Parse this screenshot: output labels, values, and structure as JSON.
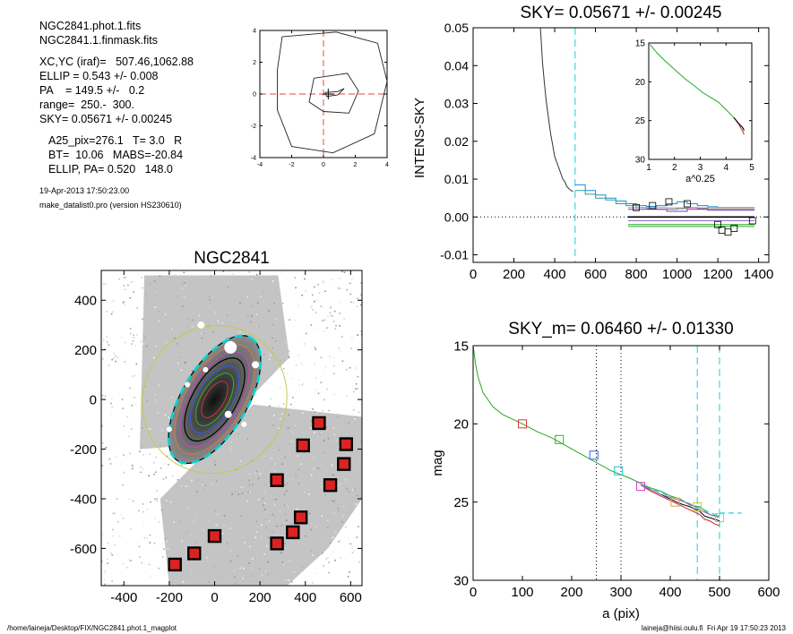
{
  "info": {
    "lines": [
      "NGC2841.phot.1.fits",
      "NGC2841.1.finmask.fits",
      "XC,YC (iraf)=   507.46,1062.88",
      "ELLIP = 0.543 +/- 0.008",
      "PA    = 149.5 +/-   0.2",
      "range=  250.-  300.",
      "SKY= 0.05671 +/- 0.00245",
      "A25_pix=276.1   T= 3.0   R",
      "BT=  10.06   MABS=-20.84",
      "ELLIP, PA= 0.520   148.0"
    ],
    "small_lines": [
      "19-Apr-2013 17:50:23.00",
      "make_datalist0.pro (version HS230610)"
    ]
  },
  "footer": {
    "left": "/home/laineja/Desktop/FIX/NGC2841.phot.1_magplot",
    "right": "laineja@hiisi.oulu.fi  Fri Apr 19 17:50:23 2013"
  },
  "chart_data": [
    {
      "type": "contour",
      "id": "center-contour",
      "xlim": [
        -4,
        4
      ],
      "ylim": [
        -4,
        4
      ],
      "xticks": [
        -4,
        -2,
        0,
        2,
        4
      ],
      "yticks": [
        -4,
        -2,
        0,
        2,
        4
      ],
      "contours": [
        [
          [
            -2.6,
            3.6
          ],
          [
            0.8,
            3.9
          ],
          [
            3.4,
            3.2
          ],
          [
            4.0,
            0.8
          ],
          [
            3.2,
            -2.5
          ],
          [
            0.6,
            -3.7
          ],
          [
            -2.0,
            -3.3
          ],
          [
            -2.9,
            -1.0
          ],
          [
            -2.9,
            1.5
          ],
          [
            -2.6,
            3.6
          ]
        ],
        [
          [
            -0.6,
            1.0
          ],
          [
            1.5,
            1.3
          ],
          [
            2.2,
            0.2
          ],
          [
            1.6,
            -1.2
          ],
          [
            0.0,
            -1.1
          ],
          [
            -0.9,
            -0.5
          ],
          [
            -0.6,
            1.0
          ]
        ],
        [
          [
            0.1,
            0.1
          ],
          [
            0.9,
            0.15
          ],
          [
            1.3,
            0.35
          ],
          [
            0.9,
            -0.05
          ],
          [
            0.2,
            -0.15
          ],
          [
            0.1,
            0.1
          ]
        ]
      ],
      "cross": [
        0,
        0
      ]
    },
    {
      "type": "line",
      "id": "sky-profile",
      "title": "SKY= 0.05671 +/- 0.00245",
      "ylabel": "INTENS-SKY",
      "xlim": [
        0,
        1450
      ],
      "ylim": [
        -0.012,
        0.05
      ],
      "xticks": [
        0,
        200,
        400,
        600,
        800,
        1000,
        1200,
        1400
      ],
      "yticks": [
        -0.01,
        0.0,
        0.01,
        0.02,
        0.03,
        0.04,
        0.05
      ],
      "ytick_labels": [
        "-0.01",
        "0.00",
        "0.01",
        "0.02",
        "0.03",
        "0.04",
        "0.05"
      ],
      "vline": 500,
      "inner_profile": {
        "x": [
          330,
          340,
          350,
          360,
          370,
          380,
          390,
          400,
          410,
          420,
          430,
          440,
          450,
          460,
          470,
          480,
          490
        ],
        "y": [
          0.05,
          0.041,
          0.035,
          0.03,
          0.026,
          0.022,
          0.019,
          0.016,
          0.0145,
          0.013,
          0.0115,
          0.01,
          0.0093,
          0.008,
          0.0075,
          0.007,
          0.0068
        ]
      },
      "steps": [
        {
          "color": "#1a8fd6",
          "x": [
            500,
            550,
            600,
            650,
            700,
            750,
            800,
            850,
            900,
            950,
            1000,
            1050,
            1100,
            1150,
            1200,
            1250,
            1300,
            1350,
            1380
          ],
          "y": [
            0.0085,
            0.007,
            0.0058,
            0.005,
            0.0042,
            0.0035,
            0.003,
            0.0028,
            0.003,
            0.0035,
            0.004,
            0.0035,
            0.003,
            0.0027,
            0.0025,
            0.0025,
            0.0025,
            0.0025,
            0.0025
          ]
        },
        {
          "color": "#2ca0a0",
          "x": [
            500,
            550,
            600,
            650,
            700,
            750,
            800,
            850,
            900,
            950,
            1000,
            1050,
            1100,
            1150,
            1200,
            1250,
            1300,
            1350,
            1380
          ],
          "y": [
            0.007,
            0.006,
            0.005,
            0.0045,
            0.0035,
            0.003,
            0.0025,
            0.0022,
            0.002,
            0.002,
            0.0022,
            0.0025,
            0.0022,
            0.002,
            0.002,
            0.002,
            0.002,
            0.002,
            0.002
          ]
        },
        {
          "color": "#7b3fbf",
          "x": [
            760,
            850,
            950,
            1050,
            1150,
            1250,
            1380
          ],
          "y": [
            0.002,
            0.002,
            0.0015,
            0.002,
            0.0018,
            0.0018,
            0.0018
          ]
        },
        {
          "color": "#e88080",
          "x": [
            760,
            850,
            950,
            1050,
            1150,
            1250,
            1380
          ],
          "y": [
            0.0025,
            0.0025,
            0.0024,
            0.0024,
            0.0024,
            0.0024,
            0.0024
          ]
        }
      ],
      "flat_lines": [
        {
          "color": "#000000",
          "x": [
            760,
            1380
          ],
          "y": 0.0
        },
        {
          "color": "#22aa22",
          "x": [
            760,
            1380
          ],
          "y": -0.002
        },
        {
          "color": "#22aa22",
          "x": [
            760,
            1380
          ],
          "y": -0.0025
        },
        {
          "color": "#9966cc",
          "x": [
            760,
            1380
          ],
          "y": -0.001
        }
      ],
      "markers": {
        "x": [
          800,
          880,
          960,
          1050,
          1200,
          1220,
          1250,
          1280,
          1370
        ],
        "y": [
          0.0025,
          0.003,
          0.004,
          0.0035,
          -0.002,
          -0.0035,
          -0.004,
          -0.003,
          -0.001
        ]
      },
      "inset": {
        "xlabel": "a^0.25",
        "xlim": [
          1,
          5
        ],
        "ylim": [
          15,
          30
        ],
        "xticks": [
          1,
          2,
          3,
          4,
          5
        ],
        "yticks": [
          15,
          20,
          25,
          30
        ],
        "series": [
          {
            "color": "#22aa22",
            "x": [
              1.05,
              1.3,
              1.6,
              2.0,
              2.4,
              2.8,
              3.1,
              3.4,
              3.7,
              4.0,
              4.3,
              4.55,
              4.7
            ],
            "y": [
              15.2,
              16.2,
              17.2,
              18.4,
              19.6,
              20.6,
              21.4,
              22.0,
              22.6,
              23.6,
              24.6,
              25.6,
              26.1
            ]
          },
          {
            "color": "#cc2222",
            "x": [
              4.3,
              4.5,
              4.65,
              4.7
            ],
            "y": [
              24.6,
              25.5,
              26.4,
              26.8
            ]
          },
          {
            "color": "#000000",
            "x": [
              4.3,
              4.5,
              4.65,
              4.7
            ],
            "y": [
              24.6,
              25.4,
              25.9,
              26.3
            ]
          }
        ]
      }
    },
    {
      "type": "image",
      "id": "galaxy-image",
      "title": "NGC2841",
      "xlim": [
        -500,
        650
      ],
      "ylim": [
        -750,
        520
      ],
      "xticks": [
        -400,
        -200,
        0,
        200,
        400,
        600
      ],
      "yticks": [
        -600,
        -400,
        -200,
        0,
        200,
        400
      ],
      "ellipses": [
        {
          "a": 316,
          "b": 145,
          "pa_deg": 59.5,
          "color": "#00d8d8",
          "dash": true,
          "width": 2.5
        },
        {
          "a": 316,
          "b": 145,
          "pa_deg": 59.5,
          "color": "#000000",
          "dash": false,
          "width": 1.2
        },
        {
          "a": 330,
          "b": 315,
          "pa_deg": 59.5,
          "color": "#c8c84a",
          "dash": false,
          "width": 1
        },
        {
          "a": 270,
          "b": 128,
          "pa_deg": 59.5,
          "color": "#e07840",
          "dash": false,
          "width": 1
        },
        {
          "a": 235,
          "b": 110,
          "pa_deg": 59.5,
          "color": "#cc44cc",
          "dash": false,
          "width": 1
        },
        {
          "a": 205,
          "b": 96,
          "pa_deg": 59.5,
          "color": "#000000",
          "dash": false,
          "width": 1.2
        },
        {
          "a": 165,
          "b": 78,
          "pa_deg": 59.5,
          "color": "#3060e0",
          "dash": false,
          "width": 1
        },
        {
          "a": 130,
          "b": 60,
          "pa_deg": 59.5,
          "color": "#22bb22",
          "dash": false,
          "width": 1
        },
        {
          "a": 90,
          "b": 42,
          "pa_deg": 59.5,
          "color": "#dd3333",
          "dash": false,
          "width": 1
        }
      ],
      "sky_boxes": {
        "x": [
          460,
          580,
          390,
          570,
          275,
          510,
          380,
          345,
          275,
          0,
          -90,
          -175
        ],
        "y": [
          -95,
          -180,
          -185,
          -260,
          -325,
          -345,
          -475,
          -535,
          -580,
          -550,
          -620,
          -665
        ]
      }
    },
    {
      "type": "line",
      "id": "mag-profile",
      "title": "SKY_m=  0.06460 +/- 0.01330",
      "xlabel": "a (pix)",
      "ylabel": "mag",
      "xlim": [
        0,
        600
      ],
      "ylim": [
        30,
        15
      ],
      "y_inverted": true,
      "xticks": [
        0,
        100,
        200,
        300,
        400,
        500,
        600
      ],
      "yticks": [
        15,
        20,
        25,
        30
      ],
      "dotted_vlines": [
        250,
        300
      ],
      "dashed_vlines": [
        455,
        500
      ],
      "sky_level": {
        "x": [
          500,
          545
        ],
        "y": 25.7
      },
      "sky_fit": {
        "x": [
          350,
          500
        ],
        "y": [
          24.0,
          25.9
        ]
      },
      "series": [
        {
          "color": "#22aa22",
          "x": [
            0,
            5,
            10,
            20,
            40,
            60,
            80,
            100,
            130,
            160,
            200,
            240,
            280,
            320,
            340,
            360,
            380,
            400,
            420,
            440,
            460,
            480,
            500
          ],
          "y": [
            15.0,
            16.2,
            17.0,
            18.0,
            18.9,
            19.4,
            19.7,
            20.0,
            20.5,
            20.9,
            21.6,
            22.3,
            23.0,
            23.5,
            23.8,
            24.1,
            24.3,
            24.6,
            24.8,
            25.2,
            25.3,
            25.8,
            25.9
          ]
        },
        {
          "color": "#cc2222",
          "x": [
            340,
            360,
            380,
            400,
            420,
            440,
            460,
            470,
            480,
            490,
            500
          ],
          "y": [
            23.9,
            24.3,
            24.6,
            24.9,
            25.2,
            25.5,
            25.8,
            26.1,
            26.2,
            26.4,
            26.5
          ]
        },
        {
          "color": "#000000",
          "x": [
            340,
            360,
            380,
            400,
            420,
            440,
            460,
            470,
            480,
            490,
            500
          ],
          "y": [
            23.9,
            24.2,
            24.5,
            24.8,
            25.1,
            25.3,
            25.6,
            25.9,
            26.0,
            26.1,
            26.2
          ]
        },
        {
          "color": "#9966cc",
          "x": [
            340,
            360,
            380,
            400,
            420,
            440,
            460,
            480,
            500
          ],
          "y": [
            23.9,
            24.2,
            24.5,
            24.7,
            24.9,
            25.1,
            25.5,
            25.8,
            26.0
          ]
        }
      ],
      "markers": {
        "x": [
          100,
          175,
          245,
          295,
          340,
          410,
          455,
          500
        ],
        "y": [
          20.0,
          21.0,
          22.0,
          23.0,
          24.0,
          25.0,
          25.3,
          26.0
        ],
        "colors": [
          "#dd3333",
          "#22bb22",
          "#3060e0",
          "#22bbcc",
          "#cc44cc",
          "#e0a040",
          "#c8c84a",
          "#c8c84a"
        ]
      }
    }
  ]
}
